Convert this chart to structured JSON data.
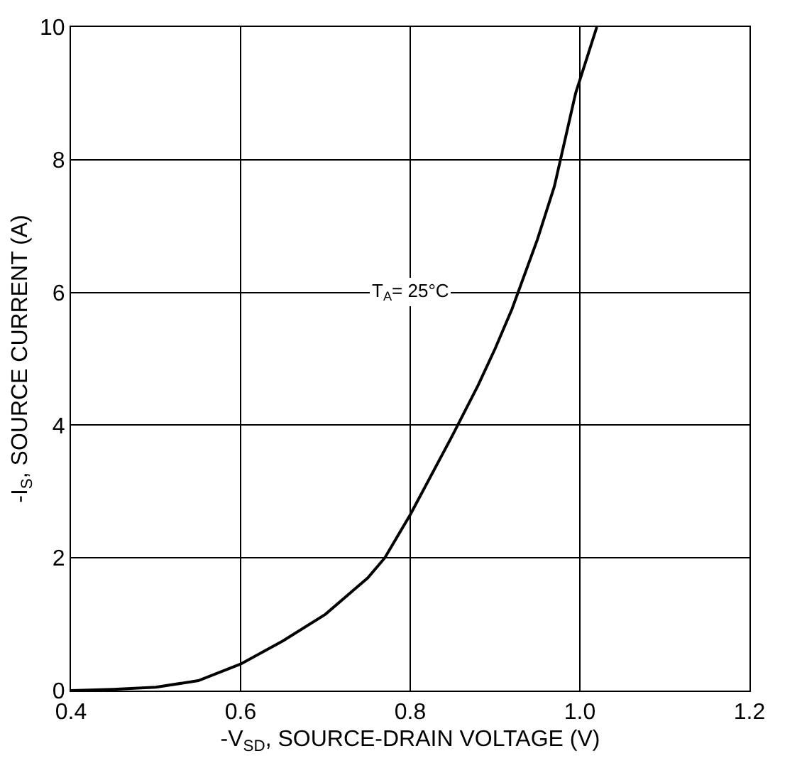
{
  "chart_data": {
    "type": "line",
    "xlabel": "-V$_{SD}$, SOURCE-DRAIN VOLTAGE (V)",
    "ylabel": "-I$_{S}$, SOURCE CURRENT (A)",
    "x": [
      0.4,
      0.45,
      0.5,
      0.55,
      0.6,
      0.65,
      0.7,
      0.75,
      0.77,
      0.8,
      0.85,
      0.88,
      0.9,
      0.92,
      0.95,
      0.97,
      0.995,
      1.02
    ],
    "series": [
      {
        "color": "#000000",
        "values": [
          0,
          0.02,
          0.05,
          0.15,
          0.4,
          0.75,
          1.15,
          1.7,
          2.0,
          2.65,
          3.85,
          4.6,
          5.15,
          5.75,
          6.8,
          7.6,
          9.0,
          10
        ]
      }
    ],
    "xlim": [
      0.4,
      1.2
    ],
    "xticks": [
      0.4,
      0.6,
      0.8,
      {
        "value": 1.0,
        "label": "1.0"
      },
      1.2
    ],
    "ylim": [
      0,
      10
    ],
    "yticks": [
      0,
      2,
      4,
      6,
      8,
      10
    ],
    "grid": true,
    "legend": false,
    "marker": "none",
    "line_style": "solid",
    "annotations": [
      "T$_{A}$= 25°C"
    ]
  }
}
